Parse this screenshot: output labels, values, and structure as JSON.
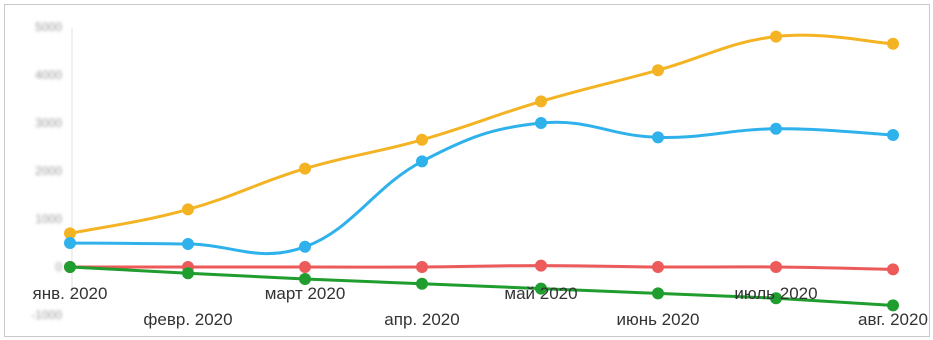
{
  "chart_data": {
    "type": "line",
    "x_labels": [
      "янв. 2020",
      "февр. 2020",
      "март 2020",
      "апр. 2020",
      "май 2020",
      "июнь 2020",
      "июль 2020",
      "авг. 2020"
    ],
    "y_ticks": [
      "5000",
      "4000",
      "3000",
      "2000",
      "1000",
      "0",
      "-1000"
    ],
    "ylim": [
      -1000,
      5000
    ],
    "grid": false,
    "legend": "none",
    "series": [
      {
        "color": "#f4b322",
        "values": [
          700,
          1200,
          2050,
          2650,
          3450,
          4100,
          4800,
          4650
        ]
      },
      {
        "color": "#2fb2ec",
        "values": [
          500,
          480,
          420,
          2200,
          3000,
          2700,
          2880,
          2750
        ]
      },
      {
        "color": "#ec5a5a",
        "values": [
          0,
          0,
          0,
          0,
          30,
          0,
          0,
          -50
        ]
      },
      {
        "color": "#1f9d2e",
        "values": [
          0,
          -130,
          -250,
          -350,
          -450,
          -550,
          -650,
          -800
        ]
      }
    ]
  }
}
